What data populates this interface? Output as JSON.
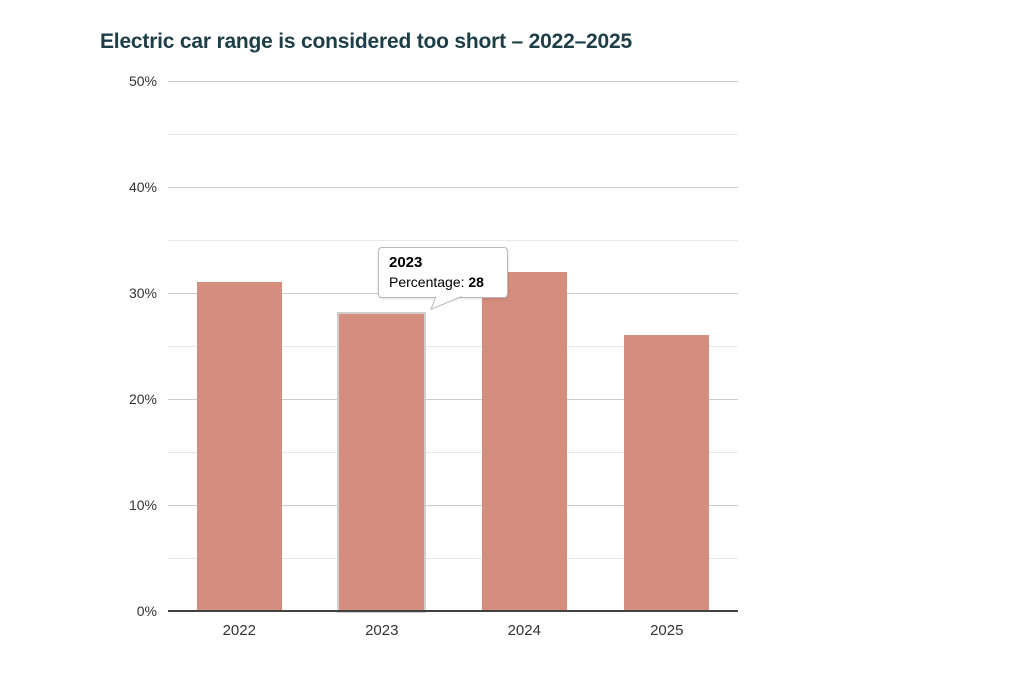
{
  "chart": {
    "title": "Electric car range is considered too short – 2022–2025"
  },
  "chart_data": {
    "type": "bar",
    "categories": [
      "2022",
      "2023",
      "2024",
      "2025"
    ],
    "values": [
      31,
      28,
      32,
      26
    ],
    "title": "Electric car range is considered too short – 2022–2025",
    "xlabel": "",
    "ylabel": "",
    "ylim": [
      0,
      50
    ],
    "ytick_major_step": 10,
    "ytick_minor_step": 5,
    "ytick_suffix": "%",
    "grid": true,
    "legend": false,
    "bar_color": "#d58d7e",
    "title_color": "#1d3d47",
    "highlighted_category": "2023"
  },
  "tooltip": {
    "title": "2023",
    "label": "Percentage: ",
    "value": "28"
  }
}
